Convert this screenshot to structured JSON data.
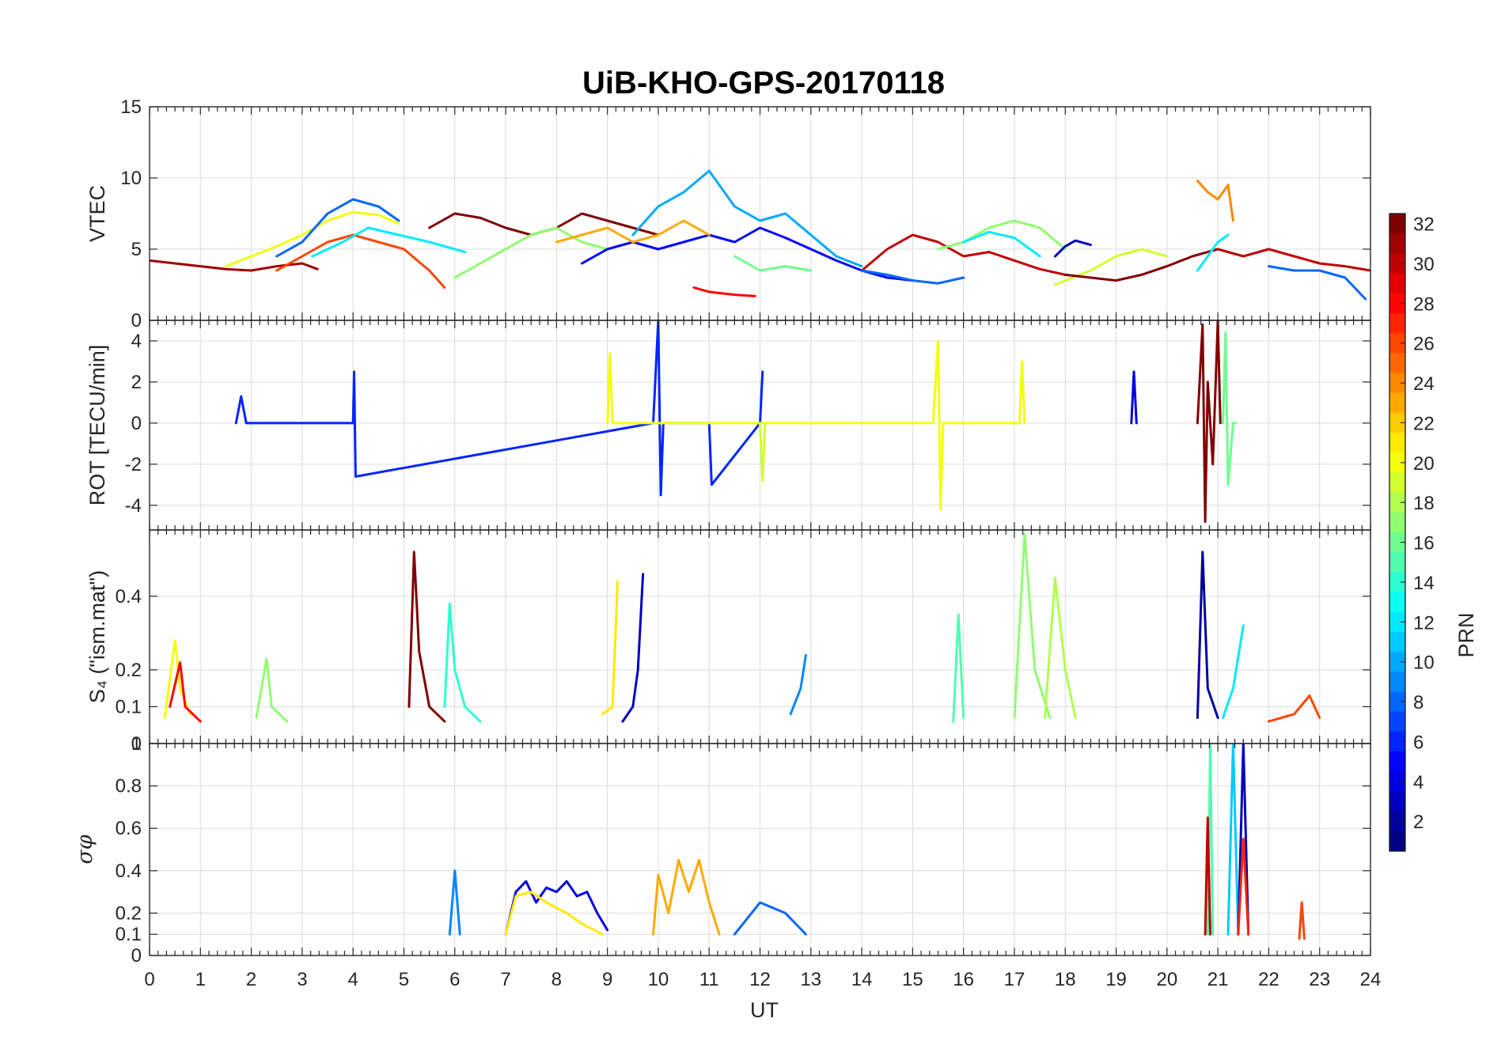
{
  "chart_data": {
    "type": "line",
    "title": "UiB-KHO-GPS-20170118",
    "xlabel": "UT",
    "xlim": [
      0,
      24
    ],
    "xticks": [
      "0",
      "1",
      "2",
      "3",
      "4",
      "5",
      "6",
      "7",
      "8",
      "9",
      "10",
      "11",
      "12",
      "13",
      "14",
      "15",
      "16",
      "17",
      "18",
      "19",
      "20",
      "21",
      "22",
      "23",
      "24"
    ],
    "colorbar": {
      "label": "PRN",
      "range": [
        1,
        32
      ],
      "ticks": [
        "2",
        "4",
        "6",
        "8",
        "10",
        "12",
        "14",
        "16",
        "18",
        "20",
        "22",
        "24",
        "26",
        "28",
        "30",
        "32"
      ],
      "colormap": "jet"
    },
    "panels": [
      {
        "id": "vtec",
        "ylabel": "VTEC",
        "ylim": [
          0,
          15
        ],
        "yticks": [
          "0",
          "5",
          "10",
          "15"
        ],
        "series": [
          {
            "prn": 31,
            "x": [
              0,
              0.5,
              1,
              1.5,
              2,
              2.5,
              3,
              3.3
            ],
            "y": [
              4.2,
              4,
              3.8,
              3.6,
              3.5,
              3.8,
              4,
              3.6
            ]
          },
          {
            "prn": 20,
            "x": [
              1.5,
              2,
              2.5,
              3,
              3.5,
              4,
              4.5,
              4.9
            ],
            "y": [
              3.8,
              4.5,
              5.2,
              6,
              7,
              7.6,
              7.4,
              6.8
            ]
          },
          {
            "prn": 8,
            "x": [
              2.5,
              3,
              3.5,
              4,
              4.5,
              4.9
            ],
            "y": [
              4.5,
              5.5,
              7.5,
              8.5,
              8,
              7
            ]
          },
          {
            "prn": 26,
            "x": [
              2.5,
              3,
              3.5,
              4,
              4.5,
              5,
              5.5,
              5.8
            ],
            "y": [
              3.5,
              4.5,
              5.5,
              6,
              5.5,
              5,
              3.5,
              2.3
            ]
          },
          {
            "prn": 12,
            "x": [
              3.2,
              3.8,
              4.3,
              4.9,
              5.5,
              6.2
            ],
            "y": [
              4.5,
              5.5,
              6.5,
              6,
              5.5,
              4.8
            ]
          },
          {
            "prn": 32,
            "x": [
              5.5,
              6,
              6.5,
              7,
              7.5,
              8,
              8.5,
              9,
              9.5,
              10
            ],
            "y": [
              6.5,
              7.5,
              7.2,
              6.5,
              6,
              6.5,
              7.5,
              7,
              6.5,
              6
            ]
          },
          {
            "prn": 17,
            "x": [
              6,
              6.5,
              7,
              7.5,
              8,
              8.5,
              9
            ],
            "y": [
              3,
              4,
              5,
              6,
              6.5,
              5.5,
              5
            ]
          },
          {
            "prn": 10,
            "x": [
              9.5,
              10,
              10.5,
              11,
              11.5,
              12,
              12.5,
              13,
              13.5,
              14
            ],
            "y": [
              6,
              8,
              9,
              10.5,
              8,
              7,
              7.5,
              6,
              4.5,
              3.8
            ]
          },
          {
            "prn": 5,
            "x": [
              8.5,
              9,
              9.5,
              10,
              10.5,
              11,
              11.5,
              12,
              12.5,
              13,
              13.5,
              14,
              14.5,
              15
            ],
            "y": [
              4,
              5,
              5.5,
              5,
              5.5,
              6,
              5.5,
              6.5,
              5.8,
              5,
              4.2,
              3.5,
              3,
              2.8
            ]
          },
          {
            "prn": 28,
            "x": [
              10.7,
              11,
              11.5,
              11.9
            ],
            "y": [
              2.3,
              2,
              1.8,
              1.7
            ]
          },
          {
            "prn": 16,
            "x": [
              11.5,
              12,
              12.5,
              13
            ],
            "y": [
              4.5,
              3.5,
              3.8,
              3.5
            ]
          },
          {
            "prn": 23,
            "x": [
              8,
              8.5,
              9,
              9.5,
              10,
              10.5,
              11
            ],
            "y": [
              5.5,
              6,
              6.5,
              5.5,
              6,
              7,
              6
            ]
          },
          {
            "prn": 30,
            "x": [
              14,
              14.5,
              15,
              15.5,
              16,
              16.5,
              17,
              17.5,
              18
            ],
            "y": [
              3.5,
              5,
              6,
              5.5,
              4.5,
              4.8,
              4.2,
              3.6,
              3.2
            ]
          },
          {
            "prn": 17,
            "x": [
              15.5,
              16,
              16.5,
              17,
              17.5,
              18
            ],
            "y": [
              5,
              5.5,
              6.5,
              7,
              6.5,
              5
            ]
          },
          {
            "prn": 12,
            "x": [
              16,
              16.5,
              17,
              17.5
            ],
            "y": [
              5.5,
              6.2,
              5.8,
              4.5
            ]
          },
          {
            "prn": 8,
            "x": [
              14,
              14.5,
              15,
              15.5,
              16
            ],
            "y": [
              3.5,
              3.2,
              2.8,
              2.6,
              3
            ]
          },
          {
            "prn": 3,
            "x": [
              17.8,
              18,
              18.2,
              18.5
            ],
            "y": [
              4.5,
              5.2,
              5.6,
              5.3
            ]
          },
          {
            "prn": 19,
            "x": [
              17.8,
              18.5,
              19,
              19.5,
              20
            ],
            "y": [
              2.5,
              3.5,
              4.5,
              5,
              4.5
            ]
          },
          {
            "prn": 32,
            "x": [
              18,
              18.5,
              19,
              19.5,
              20,
              20.5,
              21
            ],
            "y": [
              3.2,
              3,
              2.8,
              3.2,
              3.8,
              4.5,
              5
            ]
          },
          {
            "prn": 24,
            "x": [
              20.6,
              20.8,
              21,
              21.2,
              21.3
            ],
            "y": [
              9.8,
              9,
              8.5,
              9.5,
              7
            ]
          },
          {
            "prn": 12,
            "x": [
              20.6,
              20.8,
              21,
              21.2
            ],
            "y": [
              3.5,
              4.5,
              5.5,
              6
            ]
          },
          {
            "prn": 30,
            "x": [
              21,
              21.5,
              22,
              22.5,
              23,
              23.5,
              24
            ],
            "y": [
              5,
              4.5,
              5,
              4.5,
              4,
              3.8,
              3.5
            ]
          },
          {
            "prn": 8,
            "x": [
              22,
              22.5,
              23,
              23.5,
              23.9
            ],
            "y": [
              3.8,
              3.5,
              3.5,
              3,
              1.5
            ]
          }
        ]
      },
      {
        "id": "rot",
        "ylabel": "ROT [TECU/min]",
        "ylim": [
          -5.2,
          5
        ],
        "yticks": [
          "-4",
          "-2",
          "0",
          "2",
          "4"
        ],
        "series": [
          {
            "prn": 6,
            "x": [
              1.7,
              1.8,
              1.9,
              4,
              4.02,
              4.05,
              9.9,
              10,
              10.05,
              10.1,
              10.2,
              11,
              11.05,
              12,
              12.05
            ],
            "y": [
              0,
              1.3,
              0,
              0,
              2.5,
              -2.6,
              0,
              5,
              -3.5,
              0,
              0,
              0,
              -3,
              0,
              2.5
            ]
          },
          {
            "prn": 20,
            "x": [
              9,
              9.05,
              9.1,
              15.4,
              15.5,
              15.55,
              15.6,
              17.1,
              17.15,
              17.2
            ],
            "y": [
              0,
              3.4,
              0,
              0,
              4,
              -4.2,
              0,
              0,
              3,
              0
            ]
          },
          {
            "prn": 19,
            "x": [
              12,
              12.05,
              12.1
            ],
            "y": [
              0,
              -2.8,
              0
            ]
          },
          {
            "prn": 16,
            "x": [
              21.1,
              21.15,
              21.2,
              21.3,
              21.35
            ],
            "y": [
              0,
              4.4,
              -3,
              0,
              0
            ]
          },
          {
            "prn": 32,
            "x": [
              20.6,
              20.7,
              20.75,
              20.8,
              20.9,
              21,
              21.05
            ],
            "y": [
              0,
              4.8,
              -4.8,
              2,
              -2,
              5,
              0
            ]
          },
          {
            "prn": 4,
            "x": [
              19.3,
              19.35,
              19.4
            ],
            "y": [
              0,
              2.5,
              0
            ]
          }
        ]
      },
      {
        "id": "s4",
        "ylabel": "S₄ (\"ism.mat\")",
        "ylim": [
          0,
          0.58
        ],
        "yticks": [
          "0",
          "0.1",
          "0.2",
          "0.4"
        ],
        "series": [
          {
            "prn": 20,
            "x": [
              0.3,
              0.5,
              0.6,
              0.8
            ],
            "y": [
              0.07,
              0.28,
              0.15,
              0.08
            ]
          },
          {
            "prn": 28,
            "x": [
              0.4,
              0.6,
              0.7,
              1
            ],
            "y": [
              0.1,
              0.22,
              0.1,
              0.06
            ]
          },
          {
            "prn": 17,
            "x": [
              2.1,
              2.3,
              2.4,
              2.7
            ],
            "y": [
              0.07,
              0.23,
              0.1,
              0.06
            ]
          },
          {
            "prn": 32,
            "x": [
              5.1,
              5.2,
              5.3,
              5.5,
              5.8
            ],
            "y": [
              0.1,
              0.52,
              0.25,
              0.1,
              0.06
            ]
          },
          {
            "prn": 14,
            "x": [
              5.8,
              5.9,
              6,
              6.2,
              6.5
            ],
            "y": [
              0.1,
              0.38,
              0.2,
              0.1,
              0.06
            ]
          },
          {
            "prn": 21,
            "x": [
              8.9,
              9.1,
              9.2
            ],
            "y": [
              0.08,
              0.1,
              0.44
            ]
          },
          {
            "prn": 3,
            "x": [
              9.3,
              9.5,
              9.6,
              9.7
            ],
            "y": [
              0.06,
              0.1,
              0.2,
              0.46
            ]
          },
          {
            "prn": 9,
            "x": [
              12.6,
              12.8,
              12.9
            ],
            "y": [
              0.08,
              0.15,
              0.24
            ]
          },
          {
            "prn": 15,
            "x": [
              15.8,
              15.9,
              16
            ],
            "y": [
              0.06,
              0.35,
              0.07
            ]
          },
          {
            "prn": 17,
            "x": [
              17,
              17.2,
              17.4,
              17.7
            ],
            "y": [
              0.07,
              0.57,
              0.2,
              0.07
            ]
          },
          {
            "prn": 18,
            "x": [
              17.6,
              17.8,
              18,
              18.2
            ],
            "y": [
              0.07,
              0.45,
              0.2,
              0.07
            ]
          },
          {
            "prn": 2,
            "x": [
              20.6,
              20.7,
              20.8,
              21
            ],
            "y": [
              0.07,
              0.52,
              0.15,
              0.07
            ]
          },
          {
            "prn": 12,
            "x": [
              21.1,
              21.3,
              21.5
            ],
            "y": [
              0.07,
              0.15,
              0.32
            ]
          },
          {
            "prn": 26,
            "x": [
              22,
              22.5,
              22.8,
              23
            ],
            "y": [
              0.06,
              0.08,
              0.13,
              0.07
            ]
          }
        ]
      },
      {
        "id": "sigma",
        "ylabel": "σφ",
        "ylim": [
          0,
          1
        ],
        "yticks": [
          "0",
          "0.1",
          "0.2",
          "0.4",
          "0.6",
          "0.8",
          "1"
        ],
        "series": [
          {
            "prn": 9,
            "x": [
              5.9,
              6,
              6.1
            ],
            "y": [
              0.1,
              0.4,
              0.1
            ]
          },
          {
            "prn": 4,
            "x": [
              7,
              7.2,
              7.4,
              7.6,
              7.8,
              8,
              8.2,
              8.4,
              8.6,
              8.8,
              9
            ],
            "y": [
              0.1,
              0.3,
              0.35,
              0.25,
              0.32,
              0.3,
              0.35,
              0.28,
              0.3,
              0.2,
              0.12
            ]
          },
          {
            "prn": 21,
            "x": [
              7,
              7.2,
              7.5,
              7.8,
              8.2,
              8.5,
              8.9
            ],
            "y": [
              0.1,
              0.28,
              0.3,
              0.25,
              0.2,
              0.15,
              0.1
            ]
          },
          {
            "prn": 23,
            "x": [
              9.9,
              10,
              10.2,
              10.4,
              10.6,
              10.8,
              11,
              11.2
            ],
            "y": [
              0.1,
              0.38,
              0.2,
              0.45,
              0.3,
              0.45,
              0.25,
              0.1
            ]
          },
          {
            "prn": 8,
            "x": [
              11.5,
              12,
              12.5,
              12.9
            ],
            "y": [
              0.1,
              0.25,
              0.2,
              0.1
            ]
          },
          {
            "prn": 15,
            "x": [
              20.8,
              20.85,
              20.9
            ],
            "y": [
              0.1,
              1,
              0.1
            ]
          },
          {
            "prn": 30,
            "x": [
              20.75,
              20.8,
              20.85
            ],
            "y": [
              0.1,
              0.65,
              0.1
            ]
          },
          {
            "prn": 11,
            "x": [
              21.2,
              21.3,
              21.4
            ],
            "y": [
              0.1,
              1,
              0.1
            ]
          },
          {
            "prn": 3,
            "x": [
              21.4,
              21.5,
              21.6
            ],
            "y": [
              0.1,
              1,
              0.1
            ]
          },
          {
            "prn": 27,
            "x": [
              21.4,
              21.5,
              21.6
            ],
            "y": [
              0.1,
              0.55,
              0.1
            ]
          },
          {
            "prn": 26,
            "x": [
              22.6,
              22.65,
              22.7
            ],
            "y": [
              0.08,
              0.25,
              0.08
            ]
          }
        ]
      }
    ]
  }
}
